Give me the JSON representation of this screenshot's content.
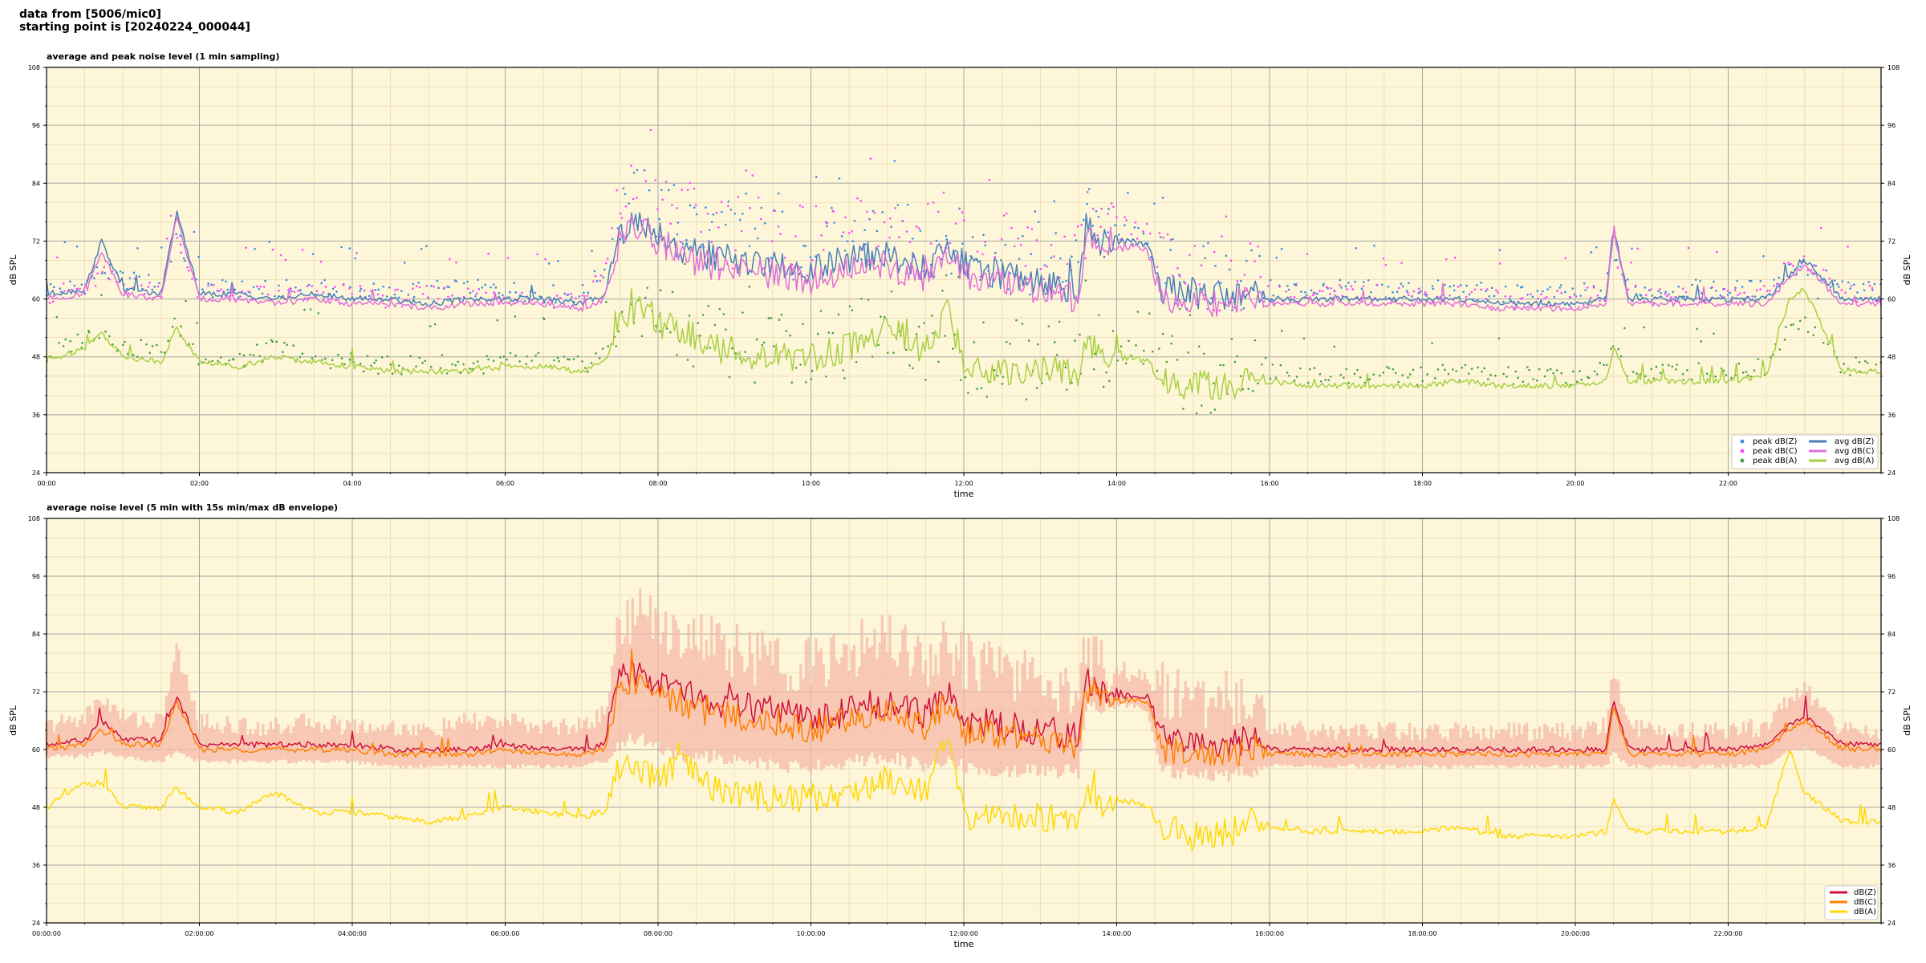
{
  "header": {
    "line1": "data from [5006/mic0]",
    "line2": "starting point is [20240224_000044]"
  },
  "colors": {
    "plot_bg": "#fdf6d8",
    "dBZ_avg": "#4a7fb8",
    "dBC_avg": "#e070d8",
    "dBA_avg": "#a8d040",
    "peak_Z": "#3a8ee0",
    "peak_C": "#ff44ff",
    "peak_A": "#44a044",
    "env": "#f6b8a8",
    "dBZ": "#d0103c",
    "dBC": "#ff8000",
    "dBA": "#ffd800"
  },
  "chart_data": [
    {
      "type": "line",
      "title": "average and peak noise level (1 min sampling)",
      "xlabel": "time",
      "ylabel": "dB SPL",
      "xlim": [
        0,
        24
      ],
      "ylim": [
        24,
        108
      ],
      "yticks": [
        "24",
        "36",
        "48",
        "60",
        "72",
        "84",
        "96",
        "108"
      ],
      "xtick_labels": [
        "00:00",
        "02:00",
        "04:00",
        "06:00",
        "08:00",
        "10:00",
        "12:00",
        "14:00",
        "16:00",
        "18:00",
        "20:00",
        "22:00"
      ],
      "legend": "lower-right",
      "grid": true,
      "x": [
        0,
        0.5,
        0.72,
        1.0,
        1.5,
        1.7,
        2.0,
        2.5,
        3.0,
        3.5,
        4.0,
        4.5,
        5.0,
        5.5,
        6.0,
        6.5,
        7.0,
        7.3,
        7.5,
        7.7,
        8.0,
        8.3,
        8.7,
        9.0,
        9.5,
        10.0,
        10.5,
        11.0,
        11.5,
        11.8,
        12.0,
        12.5,
        13.0,
        13.5,
        13.6,
        13.8,
        14.2,
        14.4,
        14.6,
        15.0,
        15.5,
        15.8,
        16.0,
        16.5,
        17.0,
        17.5,
        18.0,
        18.5,
        19.0,
        19.5,
        20.0,
        20.4,
        20.5,
        20.7,
        21.0,
        21.5,
        22.0,
        22.5,
        22.8,
        23.0,
        23.5,
        24.0
      ],
      "series": [
        {
          "name": "peak dB(Z)",
          "kind": "scatter",
          "values": [
            62,
            63,
            66,
            64,
            63,
            73,
            62,
            62,
            62,
            62,
            62,
            61,
            62,
            62,
            62,
            61,
            61,
            66,
            78,
            80,
            78,
            76,
            74,
            73,
            72,
            70,
            72,
            74,
            70,
            74,
            70,
            69,
            68,
            66,
            76,
            73,
            73,
            73,
            66,
            64,
            64,
            65,
            62,
            62,
            62,
            62,
            62,
            62,
            61,
            61,
            61,
            62,
            70,
            62,
            62,
            62,
            62,
            62,
            66,
            67,
            62,
            62
          ]
        },
        {
          "name": "peak dB(C)",
          "kind": "scatter",
          "values": [
            61,
            62,
            65,
            63,
            62,
            72,
            61,
            61,
            61,
            61,
            61,
            60,
            61,
            61,
            61,
            60,
            60,
            65,
            80,
            82,
            80,
            77,
            75,
            74,
            73,
            71,
            73,
            75,
            71,
            76,
            71,
            70,
            69,
            67,
            77,
            74,
            74,
            74,
            67,
            65,
            65,
            66,
            61,
            61,
            61,
            61,
            61,
            61,
            60,
            60,
            60,
            61,
            71,
            61,
            61,
            61,
            61,
            61,
            67,
            68,
            61,
            61
          ]
        },
        {
          "name": "peak dB(A)",
          "kind": "scatter",
          "values": [
            48,
            52,
            54,
            50,
            49,
            55,
            48,
            47,
            50,
            48,
            47,
            46,
            47,
            46,
            47,
            47,
            46,
            49,
            56,
            58,
            56,
            55,
            52,
            51,
            50,
            49,
            51,
            55,
            50,
            58,
            48,
            47,
            47,
            47,
            53,
            49,
            49,
            48,
            45,
            44,
            44,
            45,
            45,
            44,
            44,
            44,
            44,
            45,
            44,
            44,
            44,
            45,
            51,
            45,
            45,
            45,
            45,
            46,
            55,
            56,
            46,
            46
          ]
        },
        {
          "name": "avg dB(Z)",
          "kind": "line",
          "values": [
            61,
            62,
            72,
            62,
            61,
            78,
            61,
            61,
            60,
            61,
            60,
            60,
            59,
            60,
            60,
            60,
            59,
            61,
            74,
            76,
            74,
            70,
            69,
            68,
            67,
            66,
            68,
            69,
            66,
            71,
            67,
            65,
            64,
            62,
            75,
            72,
            72,
            71,
            62,
            61,
            61,
            61,
            60,
            60,
            60,
            60,
            60,
            60,
            59,
            59,
            59,
            60,
            75,
            60,
            60,
            60,
            60,
            60,
            65,
            68,
            60,
            60
          ]
        },
        {
          "name": "avg dB(C)",
          "kind": "line",
          "values": [
            60,
            61,
            70,
            61,
            60,
            77,
            60,
            60,
            59,
            60,
            59,
            59,
            58,
            59,
            59,
            59,
            58,
            60,
            72,
            75,
            72,
            68,
            67,
            66,
            65,
            64,
            66,
            67,
            64,
            69,
            65,
            63,
            62,
            60,
            74,
            71,
            71,
            70,
            60,
            59,
            59,
            60,
            59,
            59,
            59,
            59,
            59,
            59,
            58,
            58,
            58,
            59,
            74,
            59,
            59,
            59,
            59,
            59,
            64,
            67,
            59,
            59
          ]
        },
        {
          "name": "avg dB(A)",
          "kind": "line",
          "values": [
            47,
            50,
            53,
            48,
            47,
            54,
            47,
            46,
            48,
            47,
            46,
            45,
            45,
            45,
            46,
            46,
            45,
            47,
            56,
            58,
            55,
            54,
            50,
            49,
            48,
            48,
            50,
            54,
            49,
            58,
            46,
            45,
            45,
            45,
            51,
            48,
            48,
            47,
            43,
            42,
            42,
            43,
            43,
            42,
            42,
            42,
            42,
            43,
            42,
            42,
            42,
            43,
            50,
            43,
            43,
            43,
            43,
            44,
            60,
            62,
            45,
            45
          ]
        }
      ]
    },
    {
      "type": "line",
      "title": "average noise level (5 min with 15s min/max dB envelope)",
      "xlabel": "time",
      "ylabel": "dB SPL",
      "xlim": [
        0,
        24
      ],
      "ylim": [
        24,
        108
      ],
      "yticks": [
        "24",
        "36",
        "48",
        "60",
        "72",
        "84",
        "96",
        "108"
      ],
      "xtick_labels": [
        "00:00:00",
        "02:00:00",
        "04:00:00",
        "06:00:00",
        "08:00:00",
        "10:00:00",
        "12:00:00",
        "14:00:00",
        "16:00:00",
        "18:00:00",
        "20:00:00",
        "22:00:00"
      ],
      "legend": "lower-right",
      "grid": true,
      "x": [
        0,
        0.5,
        0.72,
        1.0,
        1.5,
        1.7,
        2.0,
        2.5,
        3.0,
        3.5,
        4.0,
        4.5,
        5.0,
        5.5,
        6.0,
        6.5,
        7.0,
        7.3,
        7.5,
        7.7,
        8.0,
        8.3,
        8.7,
        9.0,
        9.5,
        10.0,
        10.5,
        11.0,
        11.5,
        11.8,
        12.0,
        12.5,
        13.0,
        13.5,
        13.6,
        13.8,
        14.2,
        14.4,
        14.6,
        15.0,
        15.5,
        15.8,
        16.0,
        16.5,
        17.0,
        17.5,
        18.0,
        18.5,
        19.0,
        19.5,
        20.0,
        20.4,
        20.5,
        20.7,
        21.0,
        21.5,
        22.0,
        22.5,
        22.8,
        23.0,
        23.5,
        24.0
      ],
      "envelope": {
        "upper": [
          64,
          66,
          70,
          66,
          65,
          80,
          65,
          64,
          64,
          65,
          64,
          64,
          63,
          65,
          65,
          64,
          64,
          67,
          84,
          86,
          84,
          82,
          80,
          78,
          76,
          75,
          77,
          82,
          76,
          80,
          76,
          74,
          72,
          70,
          80,
          75,
          75,
          75,
          70,
          68,
          68,
          69,
          64,
          63,
          63,
          63,
          63,
          63,
          63,
          63,
          63,
          64,
          76,
          64,
          63,
          63,
          63,
          64,
          70,
          72,
          63,
          63
        ],
        "lower": [
          59,
          59,
          60,
          59,
          58,
          60,
          58,
          58,
          58,
          58,
          58,
          57,
          57,
          57,
          57,
          57,
          57,
          58,
          62,
          64,
          62,
          60,
          60,
          59,
          58,
          58,
          59,
          60,
          58,
          60,
          58,
          57,
          57,
          57,
          70,
          70,
          70,
          68,
          57,
          56,
          56,
          57,
          57,
          57,
          57,
          57,
          57,
          57,
          57,
          57,
          57,
          57,
          60,
          57,
          57,
          57,
          57,
          57,
          60,
          61,
          57,
          57
        ]
      },
      "series": [
        {
          "name": "dB(Z)",
          "kind": "line",
          "values": [
            61,
            62,
            66,
            62,
            62,
            71,
            61,
            61,
            61,
            61,
            61,
            60,
            60,
            60,
            61,
            60,
            60,
            61,
            75,
            76,
            74,
            72,
            69,
            69,
            68,
            66,
            68,
            70,
            67,
            72,
            66,
            65,
            64,
            63,
            74,
            72,
            71,
            71,
            62,
            61,
            61,
            62,
            60,
            60,
            60,
            60,
            60,
            60,
            60,
            60,
            60,
            60,
            70,
            60,
            60,
            60,
            60,
            61,
            65,
            67,
            61,
            61
          ]
        },
        {
          "name": "dB(C)",
          "kind": "line",
          "values": [
            60,
            61,
            64,
            61,
            61,
            70,
            60,
            60,
            60,
            60,
            60,
            59,
            59,
            59,
            60,
            59,
            59,
            60,
            73,
            74,
            72,
            70,
            67,
            67,
            66,
            64,
            66,
            68,
            65,
            70,
            64,
            63,
            62,
            61,
            73,
            71,
            70,
            70,
            60,
            59,
            59,
            60,
            59,
            59,
            59,
            59,
            59,
            59,
            59,
            59,
            59,
            59,
            69,
            59,
            59,
            59,
            59,
            60,
            64,
            66,
            60,
            60
          ]
        },
        {
          "name": "dB(A)",
          "kind": "line",
          "values": [
            48,
            53,
            53,
            48,
            48,
            52,
            48,
            47,
            51,
            47,
            47,
            46,
            45,
            46,
            48,
            47,
            46,
            47,
            57,
            55,
            54,
            57,
            52,
            51,
            50,
            50,
            51,
            54,
            52,
            62,
            46,
            46,
            46,
            46,
            52,
            49,
            49,
            48,
            44,
            42,
            43,
            45,
            44,
            43,
            43,
            43,
            43,
            44,
            42,
            42,
            42,
            43,
            50,
            43,
            43,
            43,
            43,
            44,
            60,
            51,
            45,
            45
          ]
        }
      ]
    }
  ]
}
